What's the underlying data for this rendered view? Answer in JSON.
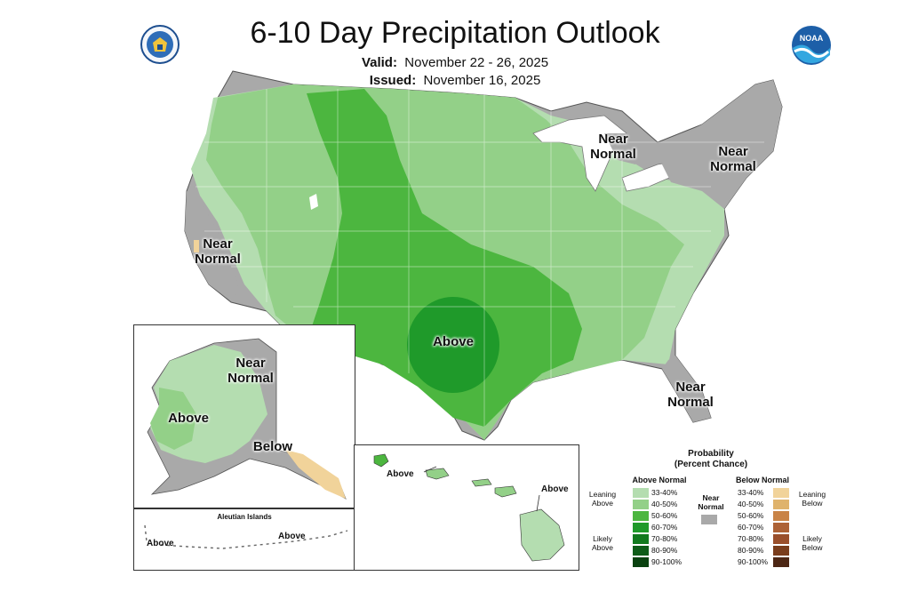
{
  "title": "6-10 Day Precipitation Outlook",
  "valid_label": "Valid:",
  "valid_value": "November 22 - 26, 2025",
  "issued_label": "Issued:",
  "issued_value": "November 16, 2025",
  "logos": [
    "doc-seal-icon",
    "noaa-logo-icon"
  ],
  "map_labels": {
    "above_main": "Above",
    "near_normal_great_lakes": "Near Normal",
    "near_normal_northeast": "Near Normal",
    "near_normal_california": "Near Normal",
    "near_normal_florida": "Near Normal",
    "alaska_near_normal": "Near Normal",
    "alaska_above": "Above",
    "alaska_below": "Below",
    "aleutian_title": "Aleutian Islands",
    "aleutian_above_left": "Above",
    "aleutian_above_right": "Above",
    "hawaii_above_left": "Above",
    "hawaii_above_right": "Above"
  },
  "colors": {
    "above_33_40": "#b4ddb0",
    "above_40_50": "#93d088",
    "above_50_60": "#4cb63f",
    "above_60_70": "#1f9a2a",
    "above_70_80": "#127a1e",
    "above_80_90": "#0e5c18",
    "above_90_100": "#0a4210",
    "near_normal": "#a9a9a9",
    "below_33_40": "#f1d39a",
    "below_40_50": "#dfb36c",
    "below_50_60": "#c98347",
    "below_60_70": "#ad6236",
    "below_70_80": "#9a4f2b",
    "below_80_90": "#7a3d1c",
    "below_90_100": "#4d2715"
  },
  "legend": {
    "title_line1": "Probability",
    "title_line2": "(Percent Chance)",
    "above_header": "Above Normal",
    "below_header": "Below Normal",
    "near_label": "Near Normal",
    "leaning_above": "Leaning Above",
    "likely_above": "Likely Above",
    "leaning_below": "Leaning Below",
    "likely_below": "Likely Below",
    "above_ranges": [
      "33-40%",
      "40-50%",
      "50-60%",
      "60-70%",
      "70-80%",
      "80-90%",
      "90-100%"
    ],
    "below_ranges": [
      "33-40%",
      "40-50%",
      "50-60%",
      "60-70%",
      "70-80%",
      "80-90%",
      "90-100%"
    ]
  }
}
